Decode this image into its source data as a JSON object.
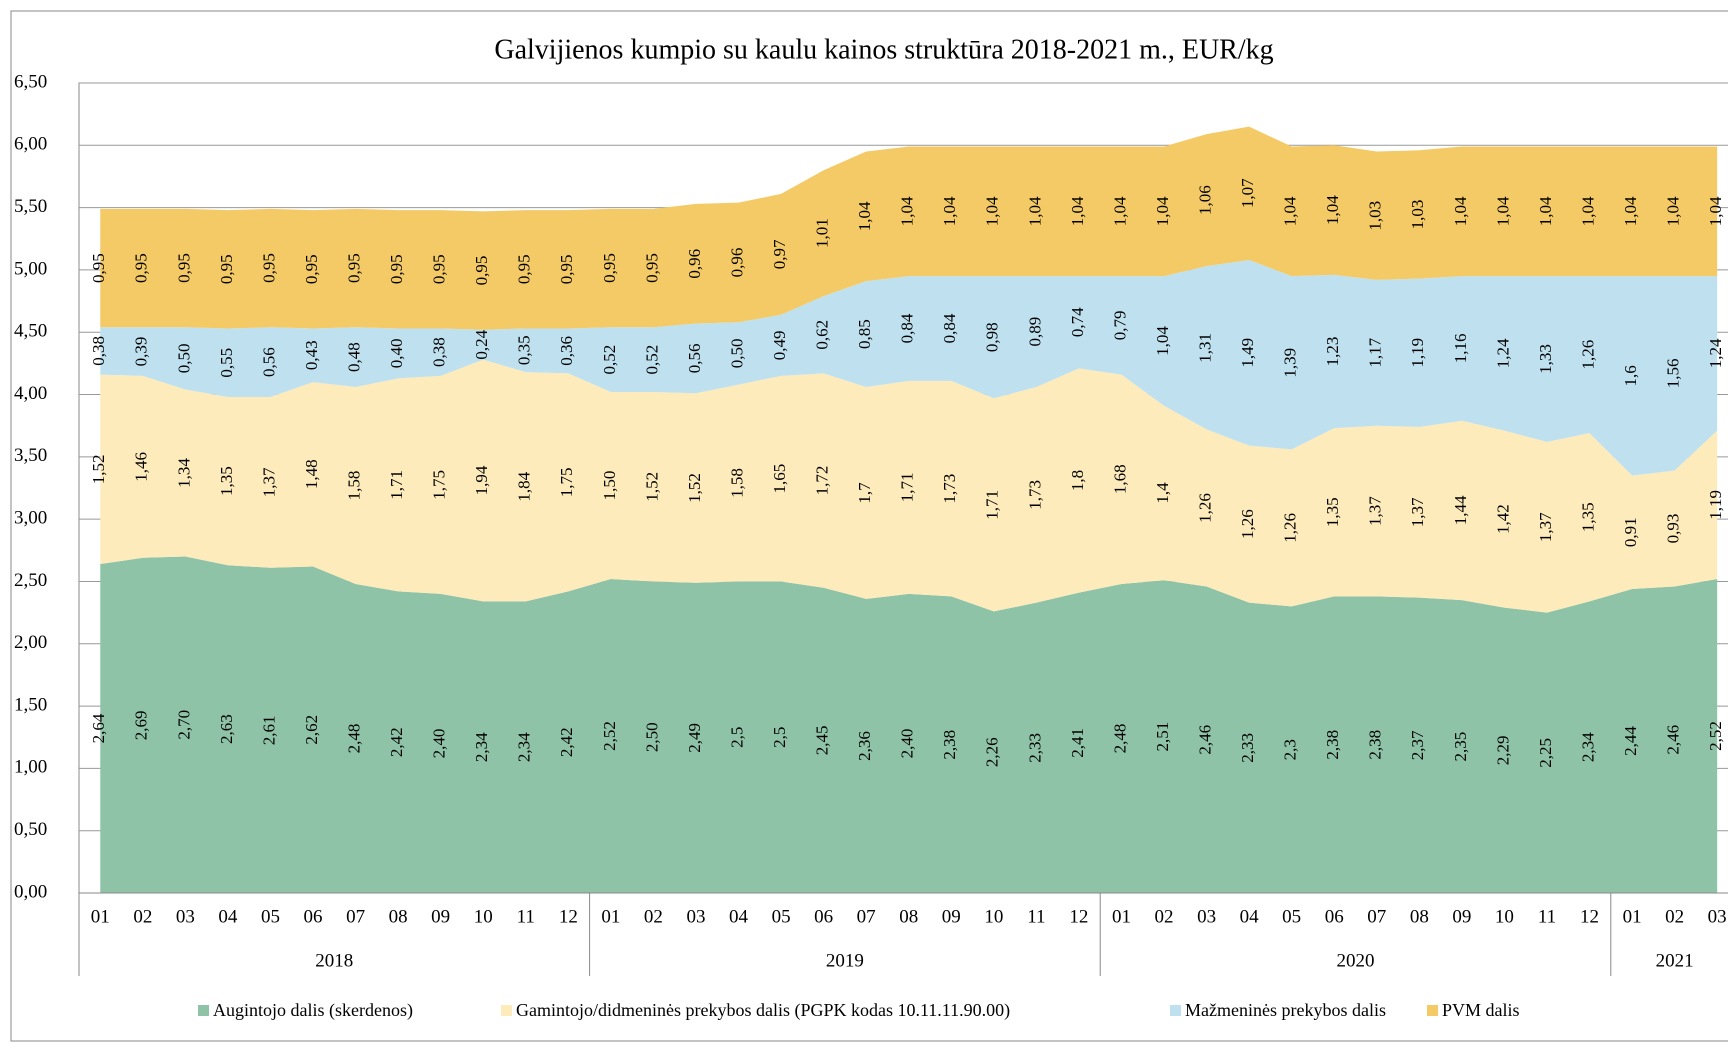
{
  "chart_data": {
    "type": "area",
    "stacked": true,
    "title": "Galvijienos kumpio su kaulu kainos struktūra 2018-2021 m., EUR/kg",
    "category_groups": [
      {
        "name": "2018",
        "categories": [
          "01",
          "02",
          "03",
          "04",
          "05",
          "06",
          "07",
          "08",
          "09",
          "10",
          "11",
          "12"
        ]
      },
      {
        "name": "2019",
        "categories": [
          "01",
          "02",
          "03",
          "04",
          "05",
          "06",
          "07",
          "08",
          "09",
          "10",
          "11",
          "12"
        ]
      },
      {
        "name": "2020",
        "categories": [
          "01",
          "02",
          "03",
          "04",
          "05",
          "06",
          "07",
          "08",
          "09",
          "10",
          "11",
          "12"
        ]
      },
      {
        "name": "2021",
        "categories": [
          "01",
          "02",
          "03"
        ]
      }
    ],
    "series": [
      {
        "name": "Augintojo dalis (skerdenos)",
        "color": "#8fc3a7",
        "values": [
          2.64,
          2.69,
          2.7,
          2.63,
          2.61,
          2.62,
          2.48,
          2.42,
          2.4,
          2.34,
          2.34,
          2.42,
          2.52,
          2.5,
          2.49,
          2.5,
          2.5,
          2.45,
          2.36,
          2.4,
          2.38,
          2.26,
          2.33,
          2.41,
          2.48,
          2.51,
          2.46,
          2.33,
          2.3,
          2.38,
          2.38,
          2.37,
          2.35,
          2.29,
          2.25,
          2.34,
          2.44,
          2.46,
          2.52
        ],
        "value_labels": [
          "2,64",
          "2,69",
          "2,70",
          "2,63",
          "2,61",
          "2,62",
          "2,48",
          "2,42",
          "2,40",
          "2,34",
          "2,34",
          "2,42",
          "2,52",
          "2,50",
          "2,49",
          "2,5",
          "2,5",
          "2,45",
          "2,36",
          "2,40",
          "2,38",
          "2,26",
          "2,33",
          "2,41",
          "2,48",
          "2,51",
          "2,46",
          "2,33",
          "2,3",
          "2,38",
          "2,38",
          "2,37",
          "2,35",
          "2,29",
          "2,25",
          "2,34",
          "2,44",
          "2,46",
          "2,52"
        ]
      },
      {
        "name": "Gamintojo/didmeninės prekybos dalis (PGPK kodas 10.11.11.90.00)",
        "color": "#fdebbb",
        "values": [
          1.52,
          1.46,
          1.34,
          1.35,
          1.37,
          1.48,
          1.58,
          1.71,
          1.75,
          1.94,
          1.84,
          1.75,
          1.5,
          1.52,
          1.52,
          1.58,
          1.65,
          1.72,
          1.7,
          1.71,
          1.73,
          1.71,
          1.73,
          1.8,
          1.68,
          1.4,
          1.26,
          1.26,
          1.26,
          1.35,
          1.37,
          1.37,
          1.44,
          1.42,
          1.37,
          1.35,
          0.91,
          0.93,
          1.19
        ],
        "value_labels": [
          "1,52",
          "1,46",
          "1,34",
          "1,35",
          "1,37",
          "1,48",
          "1,58",
          "1,71",
          "1,75",
          "1,94",
          "1,84",
          "1,75",
          "1,50",
          "1,52",
          "1,52",
          "1,58",
          "1,65",
          "1,72",
          "1,7",
          "1,71",
          "1,73",
          "1,71",
          "1,73",
          "1,8",
          "1,68",
          "1,4",
          "1,26",
          "1,26",
          "1,26",
          "1,35",
          "1,37",
          "1,37",
          "1,44",
          "1,42",
          "1,37",
          "1,35",
          "0,91",
          "0,93",
          "1,19"
        ]
      },
      {
        "name": "Mažmeninės prekybos dalis",
        "color": "#bfe1ef",
        "values": [
          0.38,
          0.39,
          0.5,
          0.55,
          0.56,
          0.43,
          0.48,
          0.4,
          0.38,
          0.24,
          0.35,
          0.36,
          0.52,
          0.52,
          0.56,
          0.5,
          0.49,
          0.62,
          0.85,
          0.84,
          0.84,
          0.98,
          0.89,
          0.74,
          0.79,
          1.04,
          1.31,
          1.49,
          1.39,
          1.23,
          1.17,
          1.19,
          1.16,
          1.24,
          1.33,
          1.26,
          1.6,
          1.56,
          1.24
        ],
        "value_labels": [
          "0,38",
          "0,39",
          "0,50",
          "0,55",
          "0,56",
          "0,43",
          "0,48",
          "0,40",
          "0,38",
          "0,24",
          "0,35",
          "0,36",
          "0,52",
          "0,52",
          "0,56",
          "0,50",
          "0,49",
          "0,62",
          "0,85",
          "0,84",
          "0,84",
          "0,98",
          "0,89",
          "0,74",
          "0,79",
          "1,04",
          "1,31",
          "1,49",
          "1,39",
          "1,23",
          "1,17",
          "1,19",
          "1,16",
          "1,24",
          "1,33",
          "1,26",
          "1,6",
          "1,56",
          "1,24"
        ]
      },
      {
        "name": "PVM dalis",
        "color": "#f4ca66",
        "values": [
          0.95,
          0.95,
          0.95,
          0.95,
          0.95,
          0.95,
          0.95,
          0.95,
          0.95,
          0.95,
          0.95,
          0.95,
          0.95,
          0.95,
          0.96,
          0.96,
          0.97,
          1.01,
          1.04,
          1.04,
          1.04,
          1.04,
          1.04,
          1.04,
          1.04,
          1.04,
          1.06,
          1.07,
          1.04,
          1.04,
          1.03,
          1.03,
          1.04,
          1.04,
          1.04,
          1.04,
          1.04,
          1.04,
          1.04
        ],
        "value_labels": [
          "0,95",
          "0,95",
          "0,95",
          "0,95",
          "0,95",
          "0,95",
          "0,95",
          "0,95",
          "0,95",
          "0,95",
          "0,95",
          "0,95",
          "0,95",
          "0,95",
          "0,96",
          "0,96",
          "0,97",
          "1,01",
          "1,04",
          "1,04",
          "1,04",
          "1,04",
          "1,04",
          "1,04",
          "1,04",
          "1,04",
          "1,06",
          "1,07",
          "1,04",
          "1,04",
          "1,03",
          "1,03",
          "1,04",
          "1,04",
          "1,04",
          "1,04",
          "1,04",
          "1,04",
          "1,04"
        ]
      }
    ],
    "ylim": [
      0,
      6.5
    ],
    "yticks": [
      {
        "value": 0,
        "label": "0,00"
      },
      {
        "value": 0.5,
        "label": "0,50"
      },
      {
        "value": 1,
        "label": "1,00"
      },
      {
        "value": 1.5,
        "label": "1,50"
      },
      {
        "value": 2,
        "label": "2,00"
      },
      {
        "value": 2.5,
        "label": "2,50"
      },
      {
        "value": 3,
        "label": "3,00"
      },
      {
        "value": 3.5,
        "label": "3,50"
      },
      {
        "value": 4,
        "label": "4,00"
      },
      {
        "value": 4.5,
        "label": "4,50"
      },
      {
        "value": 5,
        "label": "5,00"
      },
      {
        "value": 5.5,
        "label": "5,50"
      },
      {
        "value": 6,
        "label": "6,00"
      },
      {
        "value": 6.5,
        "label": "6,50"
      }
    ],
    "grid": true,
    "legend": "bottom"
  }
}
